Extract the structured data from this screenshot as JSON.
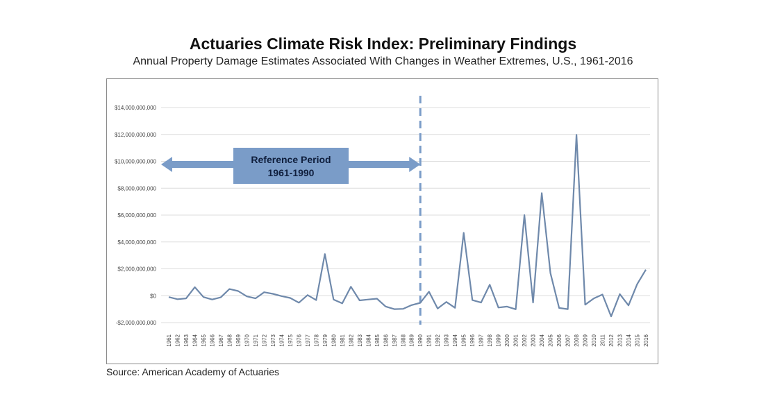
{
  "title": "Actuaries Climate Risk Index: Preliminary Findings",
  "subtitle": "Annual Property Damage Estimates Associated With Changes in Weather Extremes, U.S., 1961-2016",
  "source": "Source: American Academy of Actuaries",
  "chart_data": {
    "type": "line",
    "title": "Actuaries Climate Risk Index: Preliminary Findings",
    "subtitle": "Annual Property Damage Estimates Associated With Changes in Weather Extremes, U.S., 1961-2016",
    "xlabel": "",
    "ylabel": "",
    "ylim": [
      -2000000000,
      14000000000
    ],
    "yticks": [
      -2000000000,
      0,
      2000000000,
      4000000000,
      6000000000,
      8000000000,
      10000000000,
      12000000000,
      14000000000
    ],
    "ytick_labels": [
      "-$2,000,000,000",
      "$0",
      "$2,000,000,000",
      "$4,000,000,000",
      "$6,000,000,000",
      "$8,000,000,000",
      "$10,000,000,000",
      "$12,000,000,000",
      "$14,000,000,000"
    ],
    "grid": true,
    "line_color": "#6f89ab",
    "x": [
      1961,
      1962,
      1963,
      1964,
      1965,
      1966,
      1967,
      1968,
      1969,
      1970,
      1971,
      1972,
      1973,
      1974,
      1975,
      1976,
      1977,
      1978,
      1979,
      1980,
      1981,
      1982,
      1983,
      1984,
      1985,
      1986,
      1987,
      1988,
      1989,
      1990,
      1991,
      1992,
      1993,
      1994,
      1995,
      1996,
      1997,
      1998,
      1999,
      2000,
      2001,
      2002,
      2003,
      2004,
      2005,
      2006,
      2007,
      2008,
      2009,
      2010,
      2011,
      2012,
      2013,
      2014,
      2015,
      2016
    ],
    "values": [
      -100000000,
      -260000000,
      -200000000,
      640000000,
      -100000000,
      -280000000,
      -120000000,
      500000000,
      350000000,
      -50000000,
      -200000000,
      260000000,
      140000000,
      -30000000,
      -170000000,
      -520000000,
      50000000,
      -330000000,
      3100000000,
      -280000000,
      -570000000,
      670000000,
      -350000000,
      -280000000,
      -220000000,
      -800000000,
      -1000000000,
      -980000000,
      -700000000,
      -530000000,
      300000000,
      -950000000,
      -460000000,
      -900000000,
      4680000000,
      -330000000,
      -510000000,
      820000000,
      -880000000,
      -810000000,
      -1010000000,
      6000000000,
      -510000000,
      7630000000,
      1680000000,
      -910000000,
      -1000000000,
      11970000000,
      -670000000,
      -200000000,
      90000000,
      -1540000000,
      120000000,
      -720000000,
      860000000,
      1940000000
    ],
    "annotations": {
      "reference_line_year": 1990,
      "reference_label_line1": "Reference Period",
      "reference_label_line2": "1961-1990",
      "reference_color": "#7a9cc8"
    }
  }
}
